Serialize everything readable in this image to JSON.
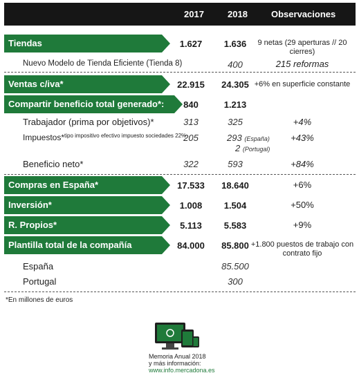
{
  "header": {
    "col2017": "2017",
    "col2018": "2018",
    "colObs": "Observaciones"
  },
  "rows": {
    "tiendas": {
      "label": "Tiendas",
      "v2017": "1.627",
      "v2018": "1.636",
      "obs": "9 netas (29 aperturas // 20 cierres)"
    },
    "nuevo_modelo": {
      "label": "Nuevo Modelo de Tienda Eficiente (Tienda 8)",
      "v2018": "400",
      "obs": "215 reformas"
    },
    "ventas": {
      "label": "Ventas c/iva*",
      "v2017": "22.915",
      "v2018": "24.305",
      "obs": "+6% en superficie constante"
    },
    "compartir": {
      "label": "Compartir beneficio total generado*:",
      "v2017": "840",
      "v2018": "1.213"
    },
    "trabajador": {
      "label": "Trabajador (prima por objetivos)*",
      "v2017": "313",
      "v2018": "325",
      "obs": "+4%"
    },
    "impuestos": {
      "label": "Impuestos*",
      "note": "tipo impositivo efectivo impuesto sociedades 22%",
      "v2017": "205",
      "v2018_es": "293",
      "es_label": "(España)",
      "v2018_pt": "2",
      "pt_label": "(Portugal)",
      "obs": "+43%"
    },
    "beneficio": {
      "label": "Beneficio neto*",
      "v2017": "322",
      "v2018": "593",
      "obs": "+84%"
    },
    "compras": {
      "label": "Compras en España*",
      "v2017": "17.533",
      "v2018": "18.640",
      "obs": "+6%"
    },
    "inversion": {
      "label": "Inversión*",
      "v2017": "1.008",
      "v2018": "1.504",
      "obs": "+50%"
    },
    "propios": {
      "label": "R. Propios*",
      "v2017": "5.113",
      "v2018": "5.583",
      "obs": "+9%"
    },
    "plantilla": {
      "label": "Plantilla total de la compañía",
      "v2017": "84.000",
      "v2018": "85.800",
      "obs": "+1.800 puestos de trabajo con contrato fijo"
    },
    "espana": {
      "label": "España",
      "v2018": "85.500"
    },
    "portugal": {
      "label": "Portugal",
      "v2018": "300"
    }
  },
  "footnote": "*En millones de euros",
  "promo": {
    "line1": "Memoria Anual 2018",
    "line2": "y más información:",
    "link": "www.info.mercadona.es"
  },
  "colors": {
    "green": "#1f7a3a",
    "dark": "#161616"
  }
}
